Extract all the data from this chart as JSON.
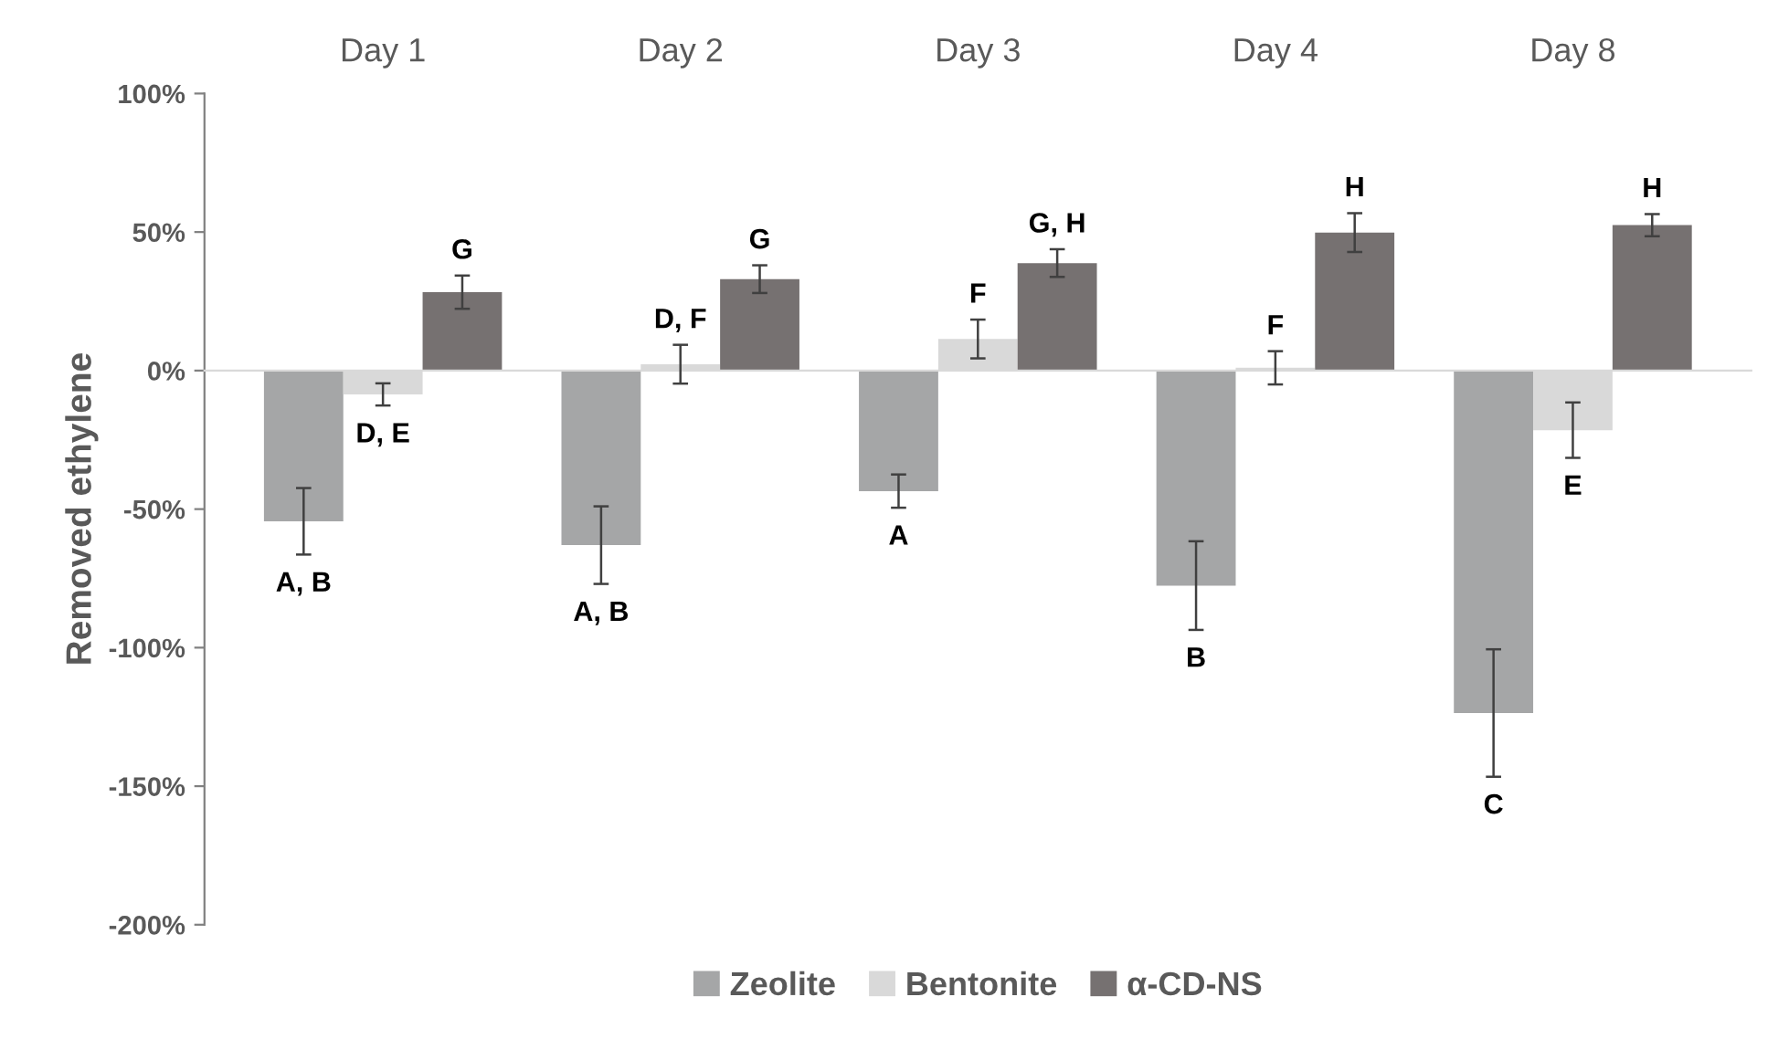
{
  "chart_data": {
    "type": "bar",
    "ylabel": "Removed ethylene",
    "categories": [
      "Day 1",
      "Day 2",
      "Day 3",
      "Day 4",
      "Day 8"
    ],
    "series": [
      {
        "name": "Zeolite",
        "color": "#a5a6a7",
        "values": [
          -54.4,
          -63,
          -43.5,
          -77.6,
          -123.6
        ],
        "errors": [
          12,
          14,
          6,
          16,
          23
        ],
        "value_labels": [
          "A, B",
          "A, B",
          "A",
          "B",
          "C"
        ]
      },
      {
        "name": "Bentonite",
        "color": "#d9d9d9",
        "values": [
          -8.6,
          2.3,
          11.4,
          1,
          -21.5
        ],
        "errors": [
          4,
          7,
          7,
          6,
          10
        ],
        "value_labels": [
          "D, E",
          "D, F",
          "F",
          "F",
          "E"
        ]
      },
      {
        "name": "α-CD-NS",
        "color": "#767171",
        "values": [
          28.3,
          33,
          38.8,
          49.8,
          52.5
        ],
        "errors": [
          6,
          5,
          5,
          7,
          4
        ],
        "value_labels": [
          "G",
          "G",
          "G, H",
          "H",
          "H"
        ]
      }
    ],
    "ylim": [
      -200,
      100
    ],
    "yticks": [
      {
        "value": -200,
        "label": "-200%"
      },
      {
        "value": -150,
        "label": "-150%"
      },
      {
        "value": -100,
        "label": "-100%"
      },
      {
        "value": -50,
        "label": "-50%"
      },
      {
        "value": 0,
        "label": "0%"
      },
      {
        "value": 50,
        "label": "50%"
      },
      {
        "value": 100,
        "label": "100%"
      }
    ],
    "legend": "bottom"
  }
}
